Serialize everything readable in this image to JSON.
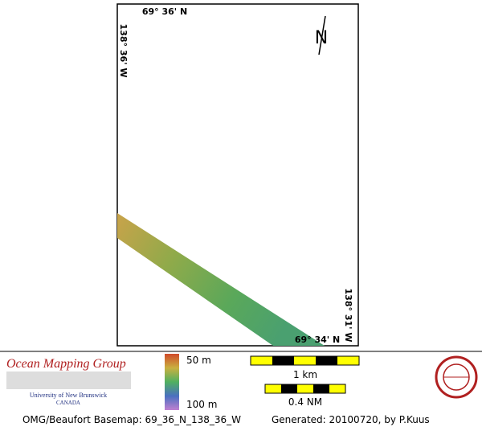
{
  "map": {
    "top_label": "69° 36' N",
    "left_label": "138° 36' W",
    "right_label": "138° 31' W",
    "bottom_label": "69° 34' N",
    "north": "N"
  },
  "legend": {
    "org": "Ocean Mapping Group",
    "university": "University of New Brunswick",
    "country": "CANADA",
    "depth_top": "50 m",
    "depth_bottom": "100 m",
    "scale_km": "1 km",
    "scale_nm": "0.4 NM"
  },
  "footer": {
    "basemap": "OMG/Beaufort Basemap: 69_36_N_138_36_W",
    "generated": "Generated: 20100720, by P.Kuus"
  }
}
